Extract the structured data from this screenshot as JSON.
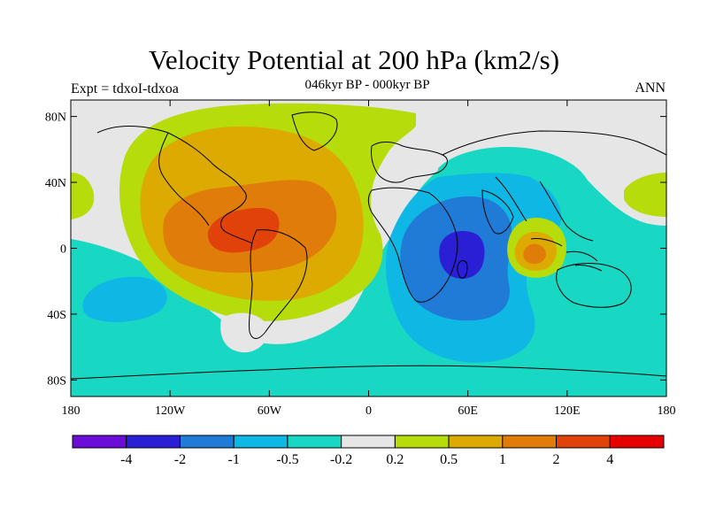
{
  "title": "Velocity Potential at 200 hPa (km2/s)",
  "subtitle": "046kyr BP - 000kyr BP",
  "experiment": "Expt = tdxoI-tdxoa",
  "season": "ANN",
  "map": {
    "projection": "cylindrical-equidistant",
    "lon_range": [
      -180,
      180
    ],
    "lat_range": [
      -90,
      90
    ],
    "x_ticks": [
      {
        "lon": -180,
        "label": "180"
      },
      {
        "lon": -120,
        "label": "120W"
      },
      {
        "lon": -60,
        "label": "60W"
      },
      {
        "lon": 0,
        "label": "0"
      },
      {
        "lon": 60,
        "label": "60E"
      },
      {
        "lon": 120,
        "label": "120E"
      },
      {
        "lon": 180,
        "label": "180"
      }
    ],
    "y_ticks": [
      {
        "lat": 80,
        "label": "80N"
      },
      {
        "lat": 40,
        "label": "40N"
      },
      {
        "lat": 0,
        "label": "0"
      },
      {
        "lat": -40,
        "label": "40S"
      },
      {
        "lat": -80,
        "label": "80S"
      }
    ],
    "features": [
      {
        "name": "max-central-america",
        "lon": -85,
        "lat": 8,
        "level": 4,
        "description": "positive maximum over Central America / Caribbean"
      },
      {
        "name": "max-maritime-continent",
        "lon": 105,
        "lat": -5,
        "level": 2,
        "description": "positive maximum over Maritime Continent"
      },
      {
        "name": "min-western-indian-ocean",
        "lon": 60,
        "lat": -5,
        "level": -4,
        "description": "negative minimum over western Indian Ocean"
      },
      {
        "name": "min-south-pacific",
        "lon": -150,
        "lat": -35,
        "level": -0.5,
        "description": "negative region in South Pacific"
      }
    ]
  },
  "colorbar": {
    "colors": [
      "#6a0dd6",
      "#2b1fd6",
      "#1f7bd6",
      "#0fb7e4",
      "#19d8c3",
      "#e6e6e6",
      "#b6dc0c",
      "#dcaa00",
      "#e07c0a",
      "#e0420a",
      "#e60000"
    ],
    "labels": [
      "-4",
      "-2",
      "-1",
      "-0.5",
      "-0.2",
      "0.2",
      "0.5",
      "1",
      "2",
      "4"
    ]
  },
  "colors": {
    "neutral": "#e6e6e6",
    "ocean_blue": "#19d8c3",
    "frame": "#000000"
  }
}
